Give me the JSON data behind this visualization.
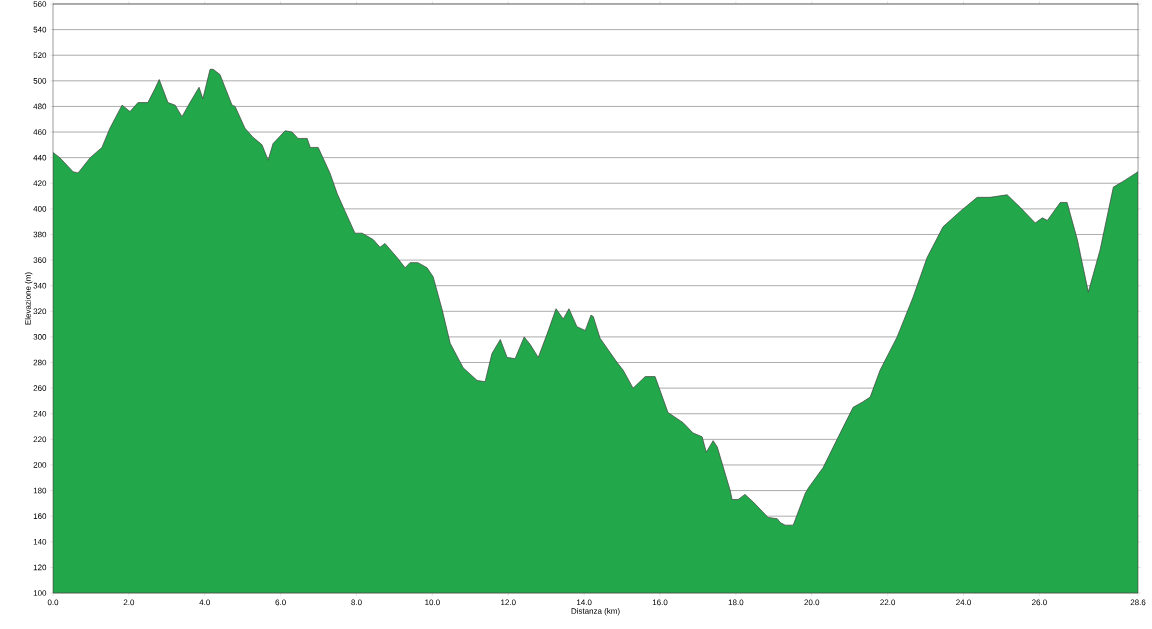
{
  "chart_data": {
    "type": "area",
    "xlabel": "Distanza  (km)",
    "ylabel": "Elevazione (m)",
    "xlim": [
      0,
      28.6
    ],
    "ylim": [
      100,
      560
    ],
    "xticks": [
      {
        "value": 0,
        "label": "0.0"
      },
      {
        "value": 2,
        "label": "2.0"
      },
      {
        "value": 4,
        "label": "4.0"
      },
      {
        "value": 6,
        "label": "6.0"
      },
      {
        "value": 8,
        "label": "8.0"
      },
      {
        "value": 10,
        "label": "10.0"
      },
      {
        "value": 12,
        "label": "12.0"
      },
      {
        "value": 14,
        "label": "14.0"
      },
      {
        "value": 16,
        "label": "16.0"
      },
      {
        "value": 18,
        "label": "18.0"
      },
      {
        "value": 20,
        "label": "20.0"
      },
      {
        "value": 22,
        "label": "22.0"
      },
      {
        "value": 24,
        "label": "24.0"
      },
      {
        "value": 26,
        "label": "26.0"
      },
      28.6
    ],
    "yticks": [
      100,
      120,
      140,
      160,
      180,
      200,
      220,
      240,
      260,
      280,
      300,
      320,
      340,
      360,
      380,
      400,
      420,
      440,
      460,
      480,
      500,
      520,
      540,
      560
    ],
    "grid": "y",
    "legend": false,
    "series": [
      {
        "color": "#22a84a",
        "x": [
          0,
          0.18,
          0.53,
          0.66,
          0.98,
          1.29,
          1.5,
          1.82,
          2.03,
          2.24,
          2.5,
          2.69,
          2.8,
          3.03,
          3.22,
          3.4,
          3.61,
          3.85,
          3.95,
          4.14,
          4.22,
          4.4,
          4.72,
          4.8,
          5.06,
          5.27,
          5.51,
          5.67,
          5.8,
          6.12,
          6.3,
          6.46,
          6.7,
          6.78,
          6.99,
          7.3,
          7.49,
          7.7,
          7.96,
          8.15,
          8.44,
          8.62,
          8.75,
          9.07,
          9.28,
          9.41,
          9.62,
          9.86,
          10.02,
          10.26,
          10.47,
          10.81,
          11.18,
          11.39,
          11.57,
          11.79,
          11.97,
          12.18,
          12.42,
          12.58,
          12.79,
          13.02,
          13.26,
          13.45,
          13.6,
          13.81,
          14.03,
          14.18,
          14.24,
          14.42,
          14.87,
          15.03,
          15.29,
          15.61,
          15.87,
          16.21,
          16.61,
          16.87,
          17.11,
          17.22,
          17.4,
          17.51,
          17.85,
          17.9,
          18.06,
          18.24,
          18.46,
          18.85,
          19.09,
          19.17,
          19.3,
          19.51,
          19.83,
          19.91,
          20.3,
          20.7,
          21.09,
          21.33,
          21.54,
          21.8,
          22.25,
          22.67,
          23.04,
          23.46,
          23.91,
          24.36,
          24.7,
          25.15,
          25.5,
          25.89,
          26.08,
          26.21,
          26.55,
          26.73,
          27.0,
          27.29,
          27.6,
          27.95,
          28.18,
          28.34,
          28.6
        ],
        "values": [
          444,
          440,
          429,
          428,
          440,
          448,
          463,
          481,
          476,
          483,
          483,
          494,
          501,
          483,
          481,
          472,
          483,
          495,
          486,
          509,
          509,
          505,
          481,
          480,
          463,
          456,
          450,
          438,
          451,
          461,
          460,
          455,
          455,
          448,
          448,
          428,
          412,
          398,
          381,
          381,
          376,
          370,
          373,
          362,
          354,
          358,
          358,
          354,
          347,
          321,
          295,
          276,
          266,
          265,
          287,
          298,
          284,
          283,
          300,
          294,
          284,
          302,
          322,
          314,
          322,
          308,
          305,
          317,
          316,
          299,
          280,
          274,
          260,
          269,
          269,
          241,
          233,
          225,
          222,
          210,
          219,
          214,
          180,
          173,
          173,
          177,
          171,
          159,
          158,
          155,
          153,
          153,
          178,
          182,
          198,
          222,
          245,
          249,
          253,
          274,
          300,
          331,
          362,
          386,
          398,
          409,
          409,
          411,
          401,
          389,
          393,
          391,
          405,
          405,
          376,
          335,
          368,
          417,
          421,
          424,
          429
        ]
      }
    ]
  }
}
